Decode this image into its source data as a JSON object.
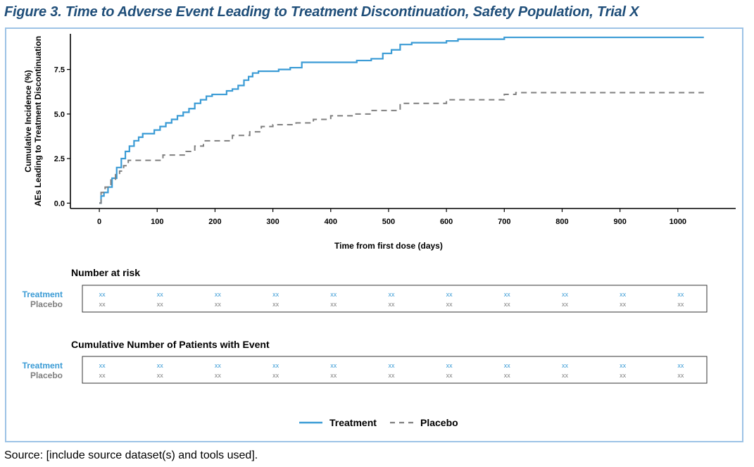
{
  "figure": {
    "title": "Figure 3. Time to Adverse Event Leading to Treatment Discontinuation, Safety Population, Trial X",
    "source": "Source: [include source dataset(s) and tools used]."
  },
  "colors": {
    "treatment": "#3a9bd5",
    "placebo": "#7f7f7f",
    "frame": "#9dc3e6",
    "title": "#1f4e79"
  },
  "chart_data": {
    "type": "line",
    "xlabel": "Time from first dose (days)",
    "ylabel_line1": "Cumulative Incidence (%)",
    "ylabel_line2": "AEs Leading to Treatment Discontinuation",
    "xlim": [
      -50,
      1100
    ],
    "ylim": [
      -0.3,
      9.5
    ],
    "x_ticks": [
      0,
      100,
      200,
      300,
      400,
      500,
      600,
      700,
      800,
      900,
      1000
    ],
    "x_tick_labels": [
      "0",
      "100",
      "200",
      "300",
      "400",
      "500",
      "600",
      "700",
      "800",
      "900",
      "1000"
    ],
    "y_ticks": [
      0,
      2.5,
      5,
      7.5
    ],
    "y_tick_labels": [
      "0.0",
      "2.5",
      "5.0",
      "7.5"
    ],
    "grid": false,
    "legend_position": "bottom",
    "series": [
      {
        "name": "Treatment",
        "style": "solid",
        "x": [
          0,
          3,
          8,
          15,
          22,
          30,
          38,
          45,
          52,
          60,
          68,
          75,
          85,
          95,
          105,
          115,
          125,
          135,
          145,
          155,
          165,
          175,
          185,
          195,
          205,
          220,
          230,
          240,
          250,
          258,
          265,
          275,
          290,
          310,
          330,
          350,
          380,
          420,
          445,
          470,
          490,
          505,
          520,
          540,
          570,
          600,
          620,
          650,
          700,
          800,
          900,
          1000,
          1045
        ],
        "y": [
          0.0,
          0.4,
          0.6,
          0.9,
          1.4,
          2.0,
          2.5,
          2.9,
          3.2,
          3.5,
          3.7,
          3.9,
          3.9,
          4.1,
          4.3,
          4.5,
          4.7,
          4.9,
          5.1,
          5.3,
          5.6,
          5.8,
          6.0,
          6.1,
          6.1,
          6.3,
          6.4,
          6.6,
          6.9,
          7.1,
          7.3,
          7.4,
          7.4,
          7.5,
          7.6,
          7.9,
          7.9,
          7.9,
          8.0,
          8.1,
          8.4,
          8.6,
          8.9,
          9.0,
          9.0,
          9.1,
          9.2,
          9.2,
          9.3,
          9.3,
          9.3,
          9.3,
          9.3
        ]
      },
      {
        "name": "Placebo",
        "style": "dashed",
        "x": [
          0,
          3,
          10,
          20,
          28,
          35,
          42,
          50,
          80,
          100,
          110,
          130,
          150,
          165,
          180,
          210,
          230,
          260,
          280,
          300,
          340,
          370,
          400,
          440,
          470,
          520,
          600,
          700,
          720,
          800,
          900,
          1000,
          1045
        ],
        "y": [
          0.0,
          0.6,
          0.9,
          1.3,
          1.6,
          1.8,
          2.1,
          2.4,
          2.4,
          2.4,
          2.7,
          2.7,
          2.9,
          3.2,
          3.5,
          3.5,
          3.8,
          4.0,
          4.3,
          4.4,
          4.5,
          4.7,
          4.9,
          5.0,
          5.2,
          5.6,
          5.8,
          6.1,
          6.2,
          6.2,
          6.2,
          6.2,
          6.2
        ]
      }
    ]
  },
  "risk_tables": [
    {
      "title": "Number at risk",
      "rows": [
        {
          "label": "Treatment",
          "cells": [
            "xx",
            "xx",
            "xx",
            "xx",
            "xx",
            "xx",
            "xx",
            "xx",
            "xx",
            "xx",
            "xx"
          ]
        },
        {
          "label": "Placebo",
          "cells": [
            "xx",
            "xx",
            "xx",
            "xx",
            "xx",
            "xx",
            "xx",
            "xx",
            "xx",
            "xx",
            "xx"
          ]
        }
      ]
    },
    {
      "title": "Cumulative Number of Patients with Event",
      "rows": [
        {
          "label": "Treatment",
          "cells": [
            "xx",
            "xx",
            "xx",
            "xx",
            "xx",
            "xx",
            "xx",
            "xx",
            "xx",
            "xx",
            "xx"
          ]
        },
        {
          "label": "Placebo",
          "cells": [
            "xx",
            "xx",
            "xx",
            "xx",
            "xx",
            "xx",
            "xx",
            "xx",
            "xx",
            "xx",
            "xx"
          ]
        }
      ]
    }
  ],
  "legend": {
    "items": [
      "Treatment",
      "Placebo"
    ]
  }
}
